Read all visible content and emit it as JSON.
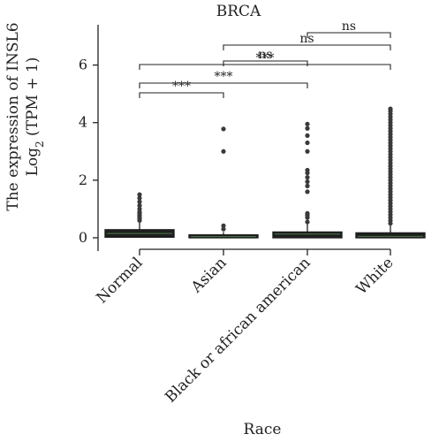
{
  "chart_data": {
    "type": "box",
    "title": "BRCA",
    "xlabel": "Race",
    "ylabel": {
      "line1": "The expression of INSL6",
      "line2_base": "Log",
      "line2_sub": "2",
      "line2_rest": " (TPM + 1)"
    },
    "categories": [
      "Normal",
      "Asian",
      "Black or african american",
      "White"
    ],
    "ylim": [
      -0.4,
      7.4
    ],
    "yticks": [
      0,
      2,
      4,
      6
    ],
    "box_color": "#1f1f1f",
    "median_color": "#4a7a4a",
    "outlier_color": "#3a3a3a",
    "boxes": [
      {
        "category": "Normal",
        "q1": 0.02,
        "median": 0.15,
        "q3": 0.28,
        "whisker_low": 0.0,
        "whisker_high": 0.55,
        "outliers": [
          0.6,
          0.67,
          0.72,
          0.78,
          0.85,
          0.9,
          1.0,
          1.12,
          1.25,
          1.38,
          1.5
        ]
      },
      {
        "category": "Asian",
        "q1": 0.0,
        "median": 0.04,
        "q3": 0.1,
        "whisker_low": 0.0,
        "whisker_high": 0.2,
        "outliers": [
          0.3,
          0.42,
          3.0,
          3.78
        ]
      },
      {
        "category": "Black or african american",
        "q1": 0.0,
        "median": 0.13,
        "q3": 0.2,
        "whisker_low": 0.0,
        "whisker_high": 0.48,
        "outliers": [
          0.55,
          0.7,
          0.78,
          0.85,
          1.6,
          1.8,
          1.95,
          2.1,
          2.25,
          2.35,
          3.0,
          3.3,
          3.55,
          3.8,
          3.95
        ]
      },
      {
        "category": "White",
        "q1": 0.0,
        "median": 0.05,
        "q3": 0.17,
        "whisker_low": 0.0,
        "whisker_high": 0.45,
        "outliers": [
          0.5,
          0.6,
          0.7,
          0.8,
          0.9,
          1.0,
          1.1,
          1.2,
          1.3,
          1.4,
          1.5,
          1.6,
          1.7,
          1.8,
          1.9,
          2.0,
          2.1,
          2.2,
          2.3,
          2.4,
          2.5,
          2.6,
          2.7,
          2.8,
          2.9,
          3.0,
          3.1,
          3.2,
          3.3,
          3.4,
          3.5,
          3.6,
          3.7,
          3.8,
          3.9,
          4.0,
          4.1,
          4.2,
          4.3,
          4.4,
          4.48
        ]
      }
    ],
    "comparisons": [
      {
        "from": "Normal",
        "to": "Asian",
        "label": "***"
      },
      {
        "from": "Normal",
        "to": "Black or african american",
        "label": "***"
      },
      {
        "from": "Normal",
        "to": "White",
        "label": "***"
      },
      {
        "from": "Asian",
        "to": "Black or african american",
        "label": "ns"
      },
      {
        "from": "Asian",
        "to": "White",
        "label": "ns"
      },
      {
        "from": "Black or african american",
        "to": "White",
        "label": "ns"
      }
    ]
  }
}
